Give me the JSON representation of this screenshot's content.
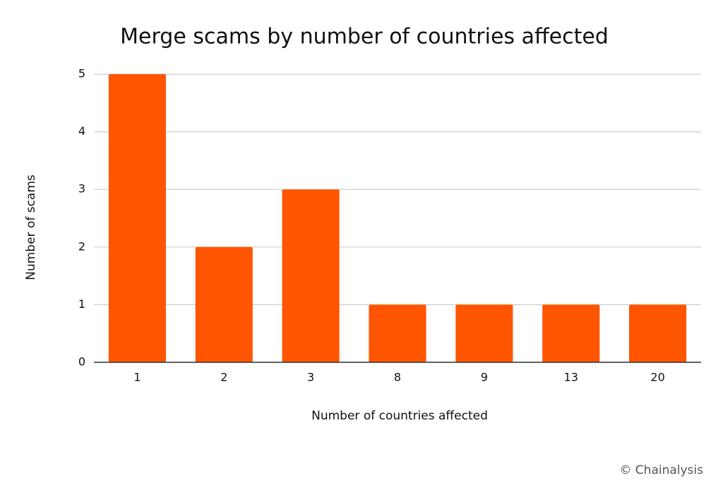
{
  "chart_data": {
    "type": "bar",
    "title": "Merge scams by number of countries affected",
    "x_label": "Number of countries affected",
    "y_label": "Number of scams",
    "categories": [
      "1",
      "2",
      "3",
      "8",
      "9",
      "13",
      "20"
    ],
    "values": [
      5,
      2,
      3,
      1,
      1,
      1,
      1
    ],
    "color": "#ff5500",
    "ylim": [
      0,
      5
    ],
    "yticks": [
      0,
      1,
      2,
      3,
      4,
      5
    ],
    "grid": true,
    "credit": "© Chainalysis"
  }
}
